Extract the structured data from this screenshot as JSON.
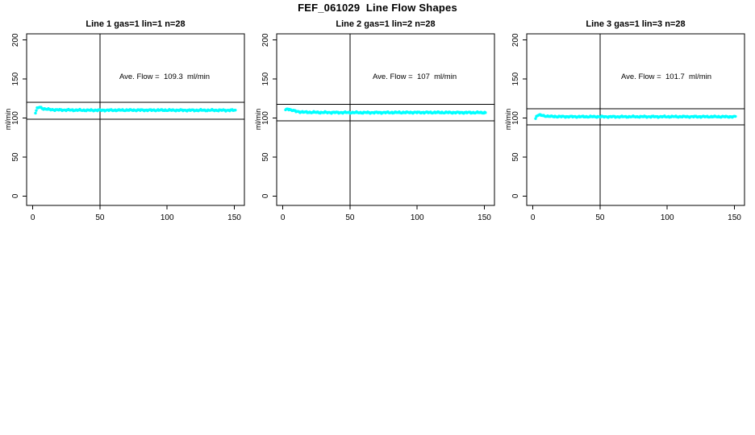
{
  "figure_title": "FEF_061029  Line Flow Shapes",
  "chart_data": {
    "type": "scatter",
    "title": "FEF_061029  Line Flow Shapes",
    "xlabel": "",
    "ylabel": "ml/min",
    "marker_color": "#00ffff",
    "axis_color": "#000000",
    "xlim": [
      -4.6,
      157.5
    ],
    "ylim": [
      -12,
      208
    ],
    "x_ticks": [
      0,
      50,
      100,
      150
    ],
    "y_ticks": [
      0,
      50,
      100,
      150,
      200
    ],
    "grid": false,
    "legend": "none",
    "panels": [
      {
        "title": "Line 1 gas=1 lin=1 n=28",
        "annotation": "Ave. Flow =  109.3  ml/min",
        "ave_flow": 109.3,
        "unit": "ml/min",
        "band_upper": 120.2,
        "band_lower": 98.4,
        "vline_x": 50,
        "series": {
          "name": "line1-flow",
          "x_start": 2,
          "x_end": 151,
          "x_step": 0.6,
          "noise": 1.1,
          "keypoints": [
            [
              2,
              106.5
            ],
            [
              3,
              112
            ],
            [
              5,
              114
            ],
            [
              8,
              112
            ],
            [
              12,
              111
            ],
            [
              18,
              110.5
            ],
            [
              40,
              110
            ],
            [
              80,
              110.2
            ],
            [
              120,
              110
            ],
            [
              151,
              110
            ]
          ]
        }
      },
      {
        "title": "Line 2 gas=1 lin=2 n=28",
        "annotation": "Ave. Flow =  107  ml/min",
        "ave_flow": 107,
        "unit": "ml/min",
        "band_upper": 117.7,
        "band_lower": 96.3,
        "vline_x": 50,
        "series": {
          "name": "line2-flow",
          "x_start": 2,
          "x_end": 151,
          "x_step": 0.6,
          "noise": 1.1,
          "keypoints": [
            [
              2,
              110
            ],
            [
              3.5,
              112
            ],
            [
              6,
              110.5
            ],
            [
              10,
              108.5
            ],
            [
              16,
              107.5
            ],
            [
              30,
              107.2
            ],
            [
              60,
              107
            ],
            [
              100,
              107.2
            ],
            [
              151,
              107
            ]
          ]
        }
      },
      {
        "title": "Line 3 gas=1 lin=3 n=28",
        "annotation": "Ave. Flow =  101.7  ml/min",
        "ave_flow": 101.7,
        "unit": "ml/min",
        "band_upper": 111.9,
        "band_lower": 91.5,
        "vline_x": 50,
        "series": {
          "name": "line3-flow",
          "x_start": 2,
          "x_end": 151,
          "x_step": 0.6,
          "noise": 1.0,
          "keypoints": [
            [
              2,
              99.5
            ],
            [
              3,
              103.5
            ],
            [
              5,
              104
            ],
            [
              8,
              102.8
            ],
            [
              14,
              102
            ],
            [
              25,
              101.8
            ],
            [
              60,
              101.7
            ],
            [
              110,
              101.8
            ],
            [
              151,
              101.7
            ]
          ]
        }
      }
    ]
  }
}
